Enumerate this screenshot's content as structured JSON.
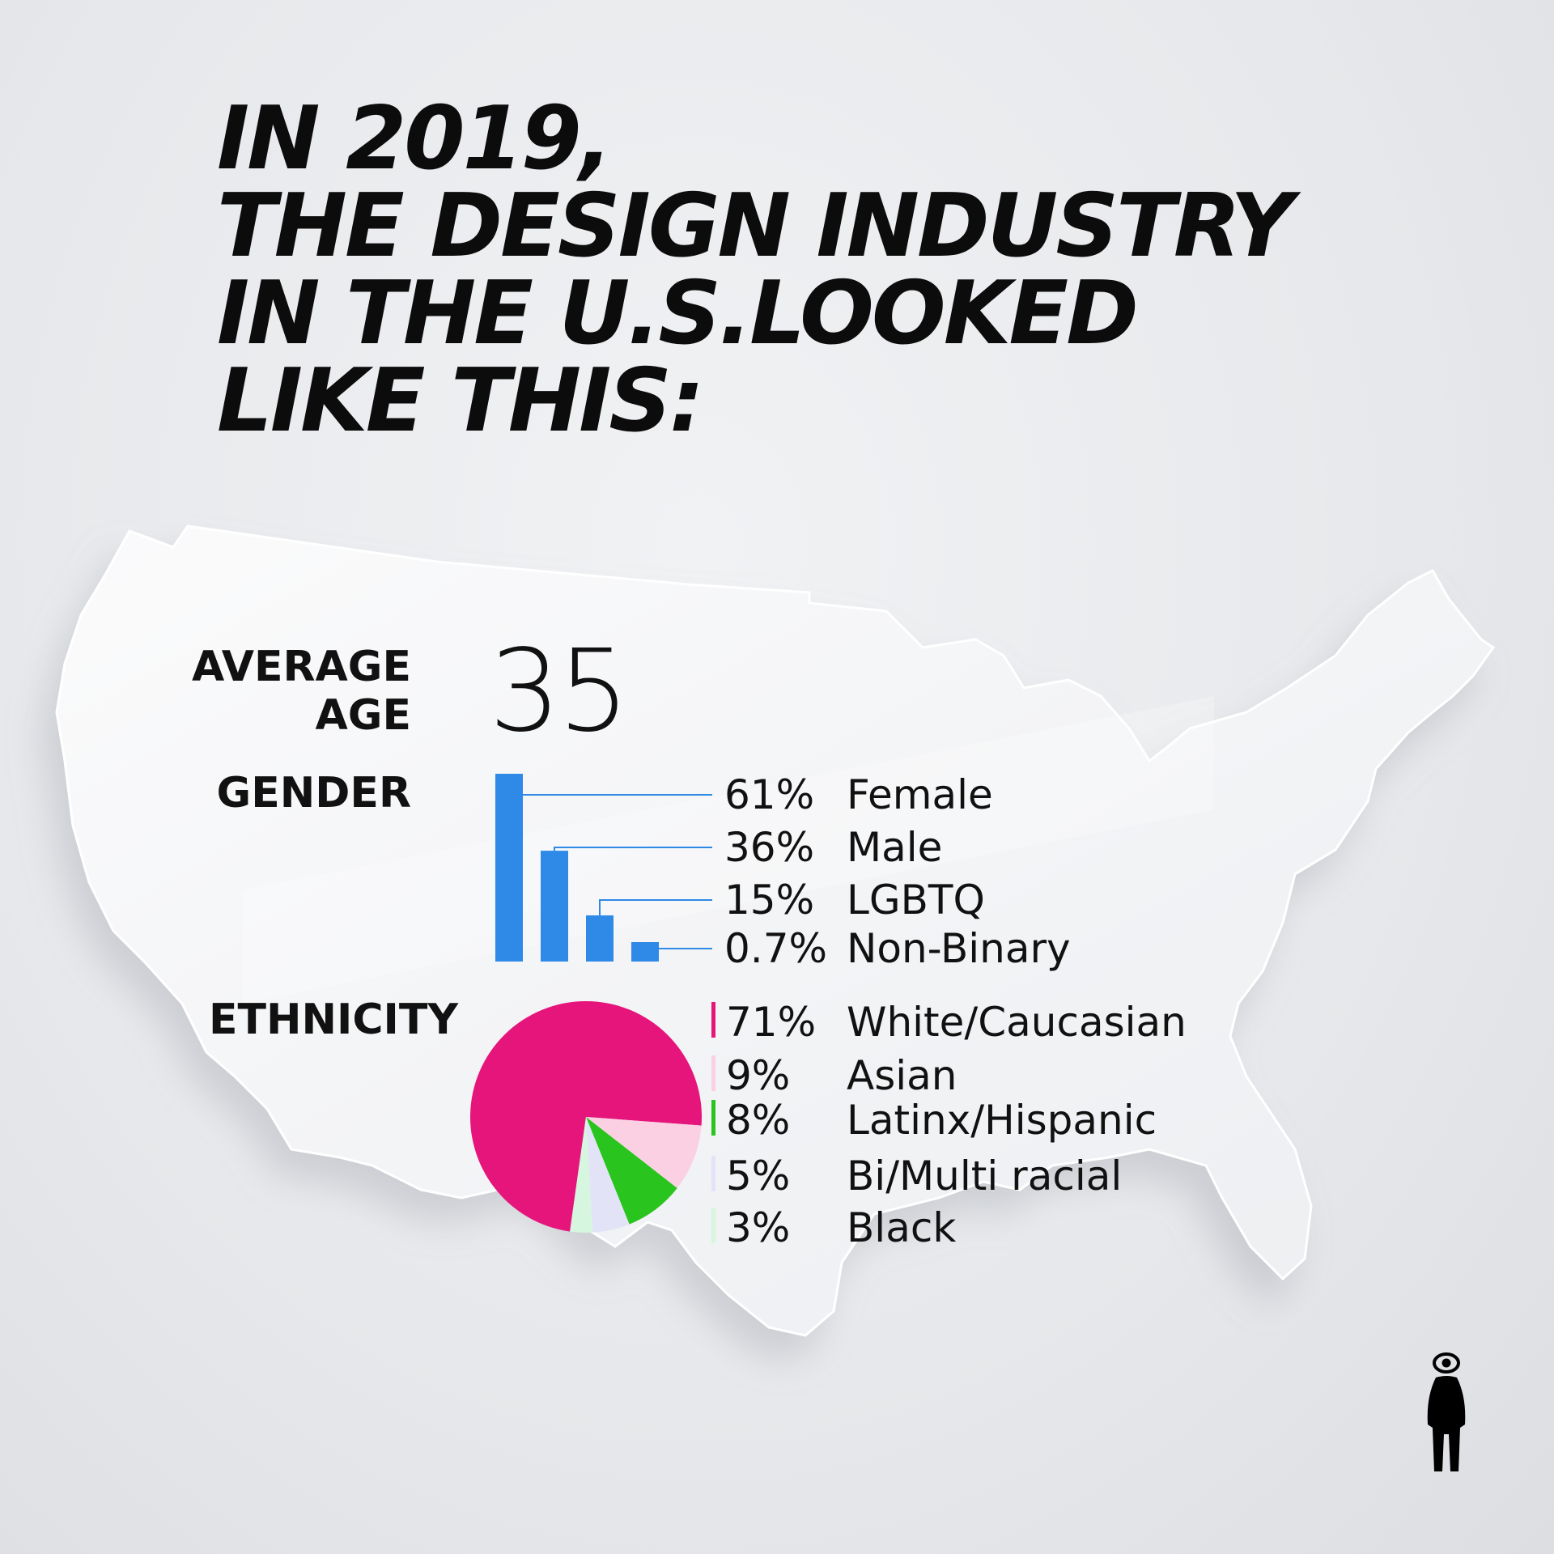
{
  "headline": {
    "line1": "IN 2019,",
    "line2": "THE DESIGN INDUSTRY",
    "line3": "IN THE U.S.LOOKED",
    "line4": "LIKE THIS:"
  },
  "labels": {
    "average_line1": "AVERAGE",
    "average_line2": "AGE",
    "average_age_value": "35",
    "gender": "GENDER",
    "ethnicity": "ETHNICITY"
  },
  "icons": {
    "map": "us-map-icon",
    "logo": "eye-person-logo-icon"
  },
  "colors": {
    "bar": "#2e8ae6",
    "white_caucasian": "#e5157b",
    "asian": "#fbd0e3",
    "latinx_hispanic": "#29c41d",
    "bi_multi_racial": "#e3e3f7",
    "black": "#d6f6e0",
    "text": "#111111"
  },
  "chart_data": [
    {
      "type": "bar",
      "title": "GENDER",
      "categories": [
        "Female",
        "Male",
        "LGBTQ",
        "Non-Binary"
      ],
      "values": [
        61,
        36,
        15,
        0.7
      ],
      "value_labels": [
        "61%",
        "36%",
        "15%",
        "0.7%"
      ],
      "ylim": [
        0,
        61
      ],
      "grid": false
    },
    {
      "type": "pie",
      "title": "ETHNICITY",
      "categories": [
        "White/Caucasian",
        "Asian",
        "Latinx/Hispanic",
        "Bi/Multi racial",
        "Black"
      ],
      "values": [
        71,
        9,
        8,
        5,
        3
      ],
      "value_labels": [
        "71%",
        "9%",
        "8%",
        "5%",
        "3%"
      ],
      "legend": "right"
    }
  ]
}
